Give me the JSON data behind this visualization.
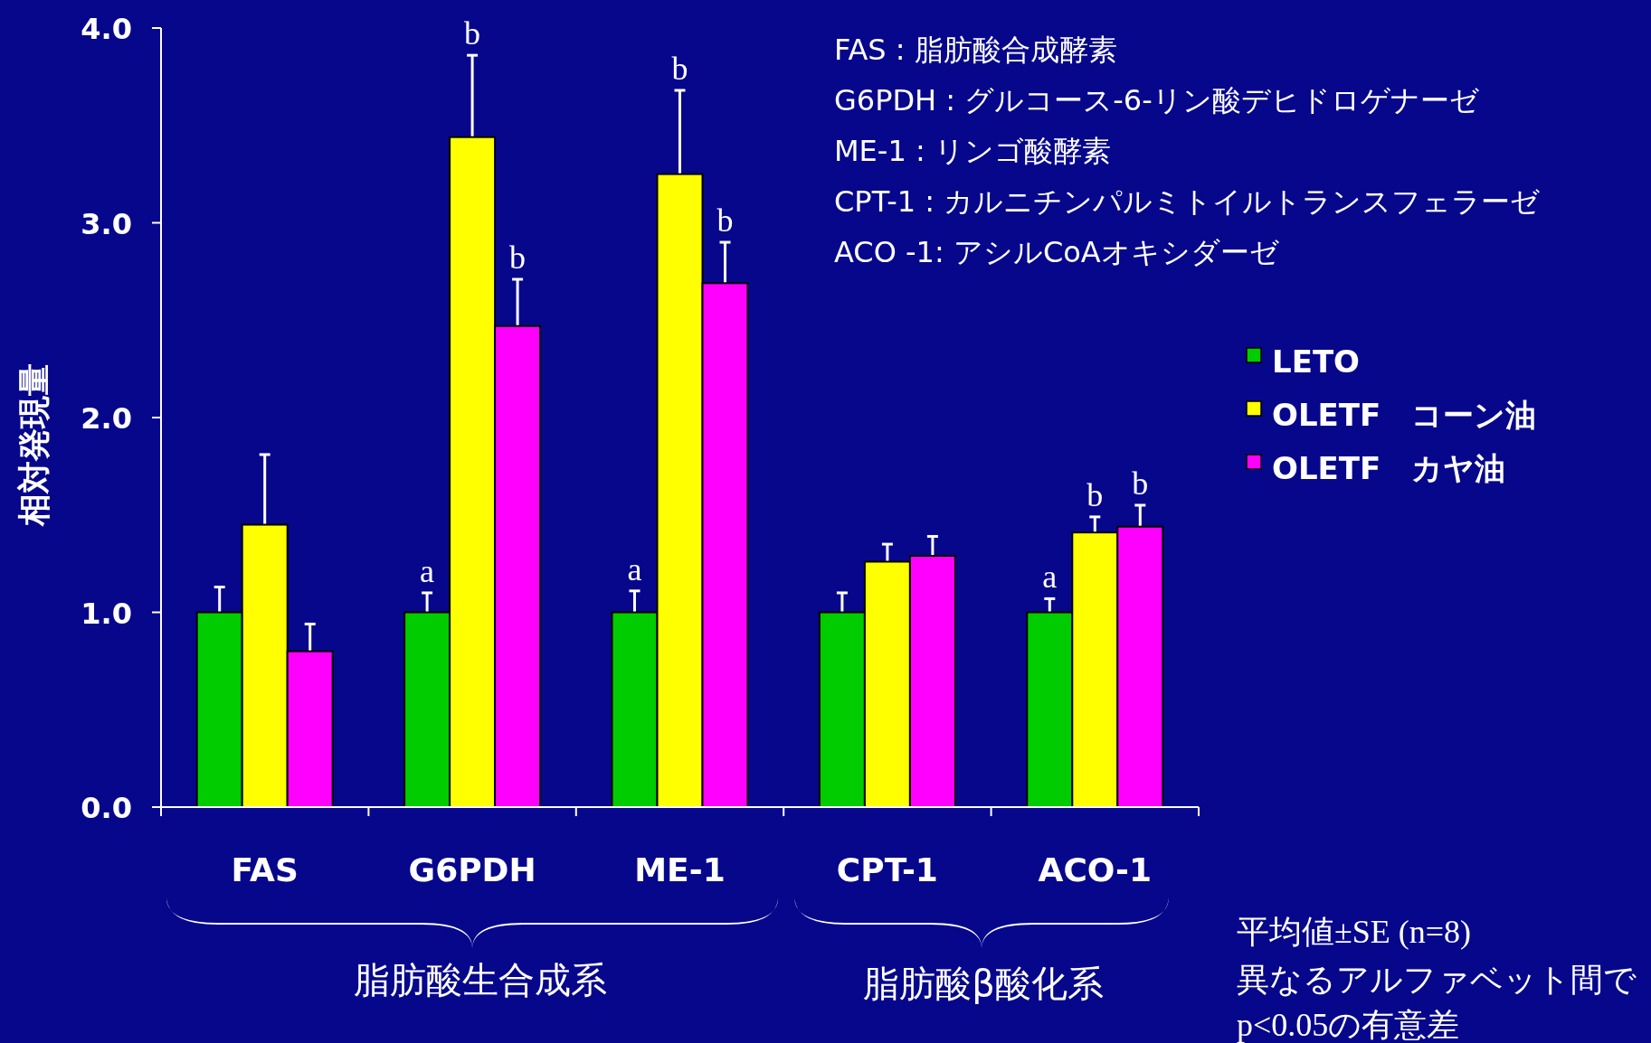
{
  "chart_data": {
    "type": "bar",
    "ylabel": "相対発現量",
    "categories": [
      "FAS",
      "G6PDH",
      "ME-1",
      "CPT-1",
      "ACO-1"
    ],
    "series": [
      {
        "name": "LETO",
        "color": "#00cc00",
        "values": [
          1.0,
          1.0,
          1.0,
          1.0,
          1.0
        ],
        "errors": [
          0.13,
          0.1,
          0.11,
          0.1,
          0.07
        ]
      },
      {
        "name": "OLETF　コーン油",
        "color": "#ffff00",
        "values": [
          1.45,
          3.44,
          3.25,
          1.26,
          1.41
        ],
        "errors": [
          0.36,
          0.42,
          0.43,
          0.09,
          0.08
        ]
      },
      {
        "name": "OLETF　カヤ油",
        "color": "#ff00ff",
        "values": [
          0.8,
          2.47,
          2.69,
          1.29,
          1.44
        ],
        "errors": [
          0.14,
          0.24,
          0.21,
          0.1,
          0.11
        ]
      }
    ],
    "ylim": [
      0,
      4
    ],
    "yticks": [
      {
        "value": 0,
        "label": "0.0"
      },
      {
        "value": 1,
        "label": "1.0"
      },
      {
        "value": 2,
        "label": "2.0"
      },
      {
        "value": 3,
        "label": "3.0"
      },
      {
        "value": 4,
        "label": "4.0"
      }
    ],
    "legend": "right",
    "annotations": [
      "FAS : 脂肪酸合成酵素",
      "G6PDH : グルコース-6-リン酸デヒドロゲナーゼ",
      "ME-1 : リンゴ酸酵素",
      "CPT-1 : カルニチンパルミトイルトランスフェラーゼ",
      "ACO -1: アシルCoAオキシダーゼ",
      "脂肪酸生合成系",
      "脂肪酸β酸化系",
      "平均値±SE (n=8)",
      "異なるアルファベット間で",
      "p<0.05の有意差",
      "a",
      "b",
      "b",
      "a",
      "b",
      "b",
      "a",
      "b",
      "b"
    ]
  }
}
